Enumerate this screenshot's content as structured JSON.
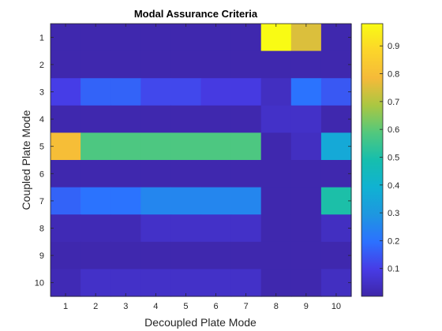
{
  "chart_data": {
    "type": "heatmap",
    "title": "Modal Assurance Criteria",
    "xlabel": "Decoupled Plate Mode",
    "ylabel": "Coupled Plate Mode",
    "x_categories": [
      "1",
      "2",
      "3",
      "4",
      "5",
      "6",
      "7",
      "8",
      "9",
      "10"
    ],
    "y_categories": [
      "1",
      "2",
      "3",
      "4",
      "5",
      "6",
      "7",
      "8",
      "9",
      "10"
    ],
    "colorbar": {
      "min": 0,
      "max": 0.98,
      "ticks": [
        "0.1",
        "0.2",
        "0.3",
        "0.4",
        "0.5",
        "0.6",
        "0.7",
        "0.8",
        "0.9"
      ],
      "tick_values": [
        0.1,
        0.2,
        0.3,
        0.4,
        0.5,
        0.6,
        0.7,
        0.8,
        0.9
      ]
    },
    "colormap": "parula",
    "values": [
      [
        0.01,
        0.01,
        0.01,
        0.01,
        0.01,
        0.01,
        0.01,
        0.98,
        0.75,
        0.01
      ],
      [
        0.01,
        0.01,
        0.01,
        0.01,
        0.01,
        0.01,
        0.01,
        0.01,
        0.01,
        0.01
      ],
      [
        0.1,
        0.17,
        0.17,
        0.12,
        0.12,
        0.09,
        0.09,
        0.04,
        0.2,
        0.15
      ],
      [
        0.01,
        0.01,
        0.01,
        0.01,
        0.01,
        0.01,
        0.01,
        0.05,
        0.05,
        0.01
      ],
      [
        0.8,
        0.58,
        0.58,
        0.58,
        0.58,
        0.58,
        0.58,
        0.01,
        0.04,
        0.36
      ],
      [
        0.01,
        0.01,
        0.01,
        0.01,
        0.01,
        0.01,
        0.01,
        0.01,
        0.01,
        0.01
      ],
      [
        0.17,
        0.2,
        0.2,
        0.25,
        0.25,
        0.25,
        0.25,
        0.01,
        0.01,
        0.5
      ],
      [
        0.02,
        0.02,
        0.02,
        0.05,
        0.05,
        0.05,
        0.05,
        0.01,
        0.01,
        0.04
      ],
      [
        0.01,
        0.01,
        0.01,
        0.01,
        0.01,
        0.01,
        0.01,
        0.01,
        0.01,
        0.01
      ],
      [
        0.02,
        0.05,
        0.05,
        0.05,
        0.05,
        0.05,
        0.05,
        0.01,
        0.01,
        0.04
      ]
    ]
  }
}
